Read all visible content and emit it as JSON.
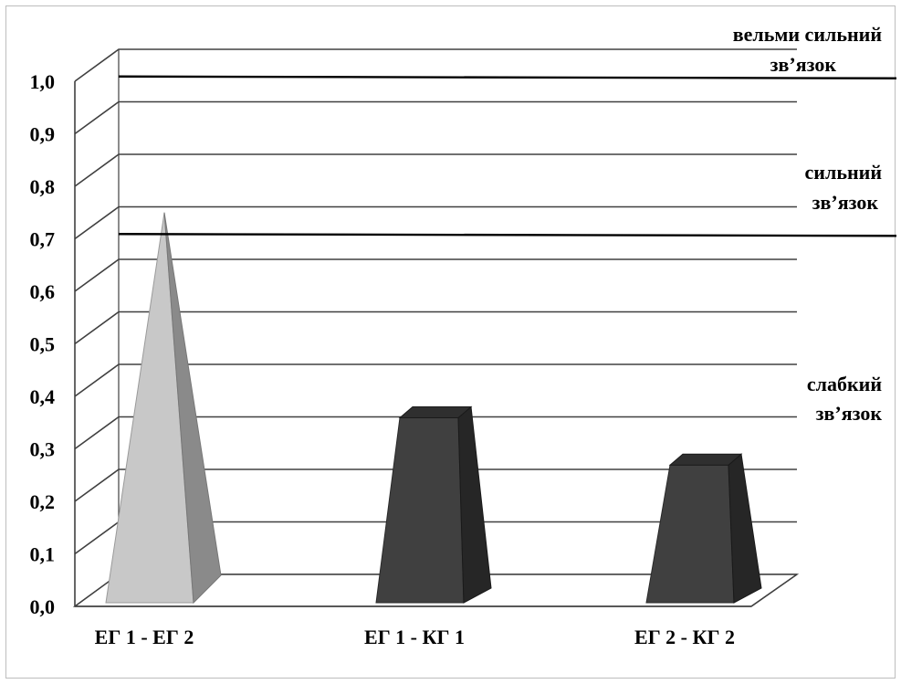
{
  "chart_data": {
    "type": "bar",
    "bar_style": "3d",
    "categories": [
      "ЕГ 1 - ЕГ 2",
      "ЕГ 1 - КГ 1",
      "ЕГ 2 - КГ 2"
    ],
    "series": [
      {
        "values": [
          0.75,
          0.38,
          0.29
        ],
        "shapes": [
          "pyramid",
          "box",
          "box"
        ],
        "colors": [
          "#c8c8c8",
          "#404040",
          "#404040"
        ]
      }
    ],
    "ylim": [
      0,
      1.0
    ],
    "yticks": [
      "0,0",
      "0,1",
      "0,2",
      "0,3",
      "0,4",
      "0,5",
      "0,6",
      "0,7",
      "0,8",
      "0,9",
      "1,0"
    ],
    "grid": true,
    "thresholds": [
      0.95,
      0.65
    ],
    "zones": [
      {
        "line1": "вельми сильний",
        "line2": "зв’язок"
      },
      {
        "line1": "сильний",
        "line2": "зв’язок"
      },
      {
        "line1": "слабкий",
        "line2": "зв’язок"
      }
    ]
  }
}
